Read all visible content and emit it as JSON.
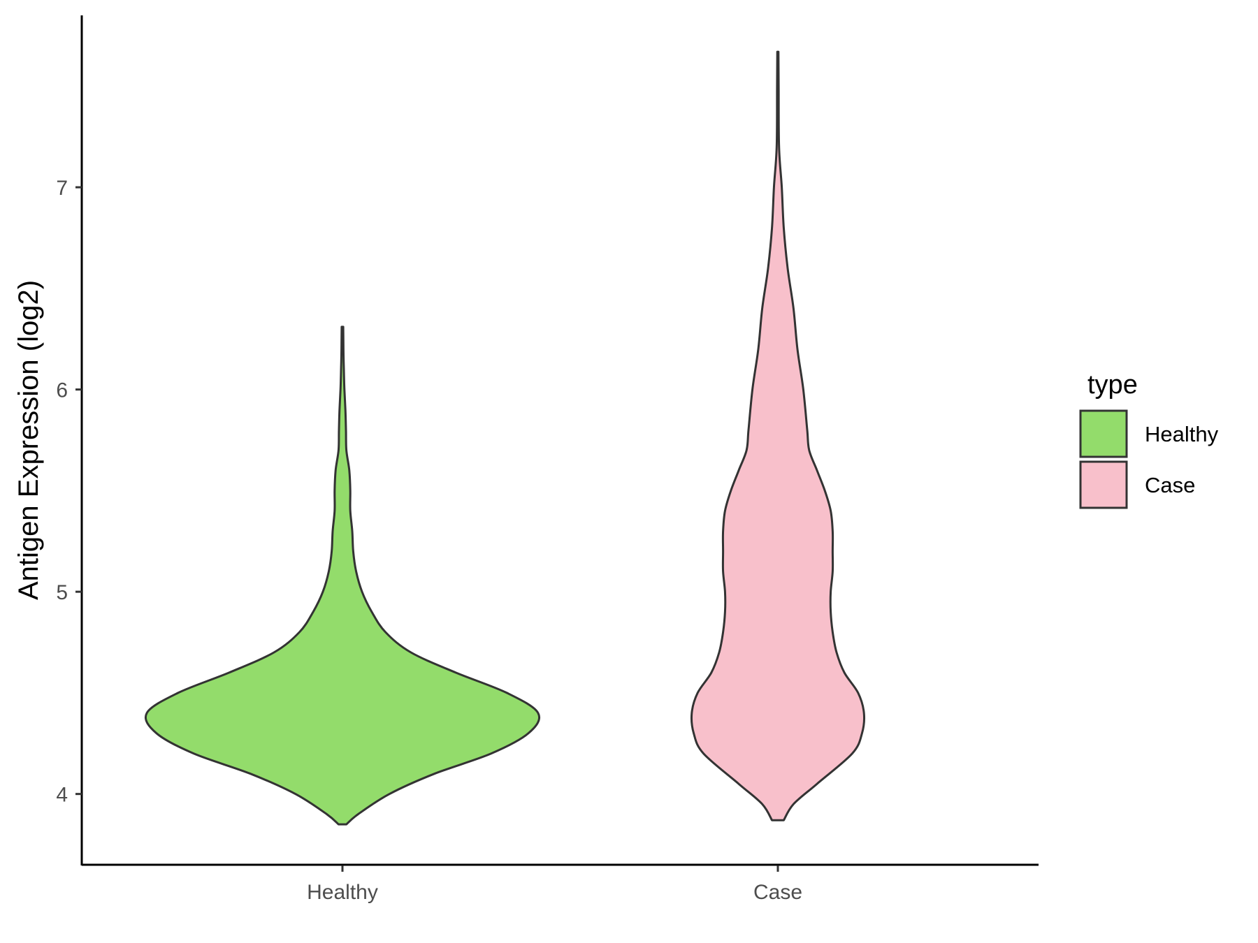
{
  "chart_data": {
    "type": "violin",
    "title": "",
    "xlabel": "",
    "ylabel": "Antigen Expression (log2)",
    "categories": [
      "Healthy",
      "Case"
    ],
    "ylim": [
      3.65,
      7.85
    ],
    "yticks": [
      "4",
      "5",
      "6",
      "7"
    ],
    "grid": false,
    "legend": {
      "title": "type",
      "position": "right",
      "entries": [
        {
          "label": "Healthy",
          "color": "#93dc6b"
        },
        {
          "label": "Case",
          "color": "#f8c0cb"
        }
      ]
    },
    "series": [
      {
        "category": "Healthy",
        "color": "#93dc6b",
        "density_profile": [
          [
            3.85,
            0.02
          ],
          [
            3.9,
            0.08
          ],
          [
            4.0,
            0.24
          ],
          [
            4.1,
            0.47
          ],
          [
            4.2,
            0.76
          ],
          [
            4.3,
            0.95
          ],
          [
            4.4,
            1.0
          ],
          [
            4.5,
            0.84
          ],
          [
            4.6,
            0.58
          ],
          [
            4.7,
            0.35
          ],
          [
            4.8,
            0.22
          ],
          [
            4.9,
            0.15
          ],
          [
            5.0,
            0.1
          ],
          [
            5.1,
            0.07
          ],
          [
            5.2,
            0.055
          ],
          [
            5.3,
            0.05
          ],
          [
            5.4,
            0.04
          ],
          [
            5.5,
            0.04
          ],
          [
            5.6,
            0.035
          ],
          [
            5.7,
            0.02
          ],
          [
            5.8,
            0.018
          ],
          [
            5.9,
            0.015
          ],
          [
            6.0,
            0.01
          ],
          [
            6.1,
            0.007
          ],
          [
            6.2,
            0.005
          ],
          [
            6.31,
            0.004
          ]
        ]
      },
      {
        "category": "Case",
        "color": "#f8c0cb",
        "density_profile": [
          [
            3.87,
            0.03
          ],
          [
            3.95,
            0.08
          ],
          [
            4.05,
            0.2
          ],
          [
            4.2,
            0.38
          ],
          [
            4.3,
            0.43
          ],
          [
            4.4,
            0.44
          ],
          [
            4.5,
            0.41
          ],
          [
            4.6,
            0.34
          ],
          [
            4.7,
            0.3
          ],
          [
            4.8,
            0.28
          ],
          [
            4.9,
            0.27
          ],
          [
            5.0,
            0.27
          ],
          [
            5.1,
            0.28
          ],
          [
            5.2,
            0.28
          ],
          [
            5.3,
            0.28
          ],
          [
            5.4,
            0.27
          ],
          [
            5.5,
            0.24
          ],
          [
            5.6,
            0.2
          ],
          [
            5.7,
            0.16
          ],
          [
            5.8,
            0.15
          ],
          [
            6.0,
            0.13
          ],
          [
            6.2,
            0.1
          ],
          [
            6.4,
            0.08
          ],
          [
            6.6,
            0.05
          ],
          [
            6.8,
            0.03
          ],
          [
            7.0,
            0.02
          ],
          [
            7.2,
            0.006
          ],
          [
            7.5,
            0.004
          ],
          [
            7.67,
            0.003
          ]
        ]
      }
    ]
  }
}
